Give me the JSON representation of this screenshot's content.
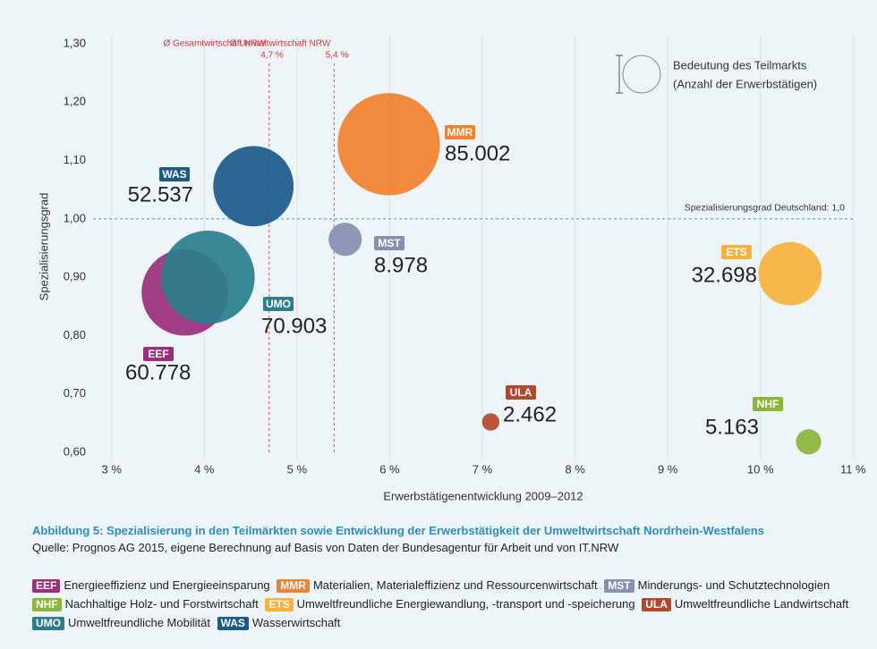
{
  "chart_data": {
    "type": "bubble",
    "x_label": "Erwerbstätigenentwicklung 2009–2012",
    "y_label": "Spezialisierungsgrad",
    "categories": [
      "EEF",
      "UMO",
      "WAS",
      "MMR",
      "MST",
      "ETS",
      "ULA",
      "NHF"
    ],
    "x": [
      3.79,
      4.04,
      4.53,
      5.99,
      5.52,
      10.32,
      7.09,
      10.52
    ],
    "values": [
      0.874,
      0.9,
      1.056,
      1.128,
      0.965,
      0.906,
      0.652,
      0.618
    ],
    "sizes": [
      60778,
      70903,
      52537,
      85002,
      8978,
      32698,
      2462,
      5163
    ],
    "size_labels": [
      "60.778",
      "70.903",
      "52.537",
      "85.002",
      "8.978",
      "32.698",
      "2.462",
      "5.163"
    ],
    "colors": [
      "#9c2f7d",
      "#2b7f8d",
      "#1d5a8c",
      "#f0812e",
      "#8790b0",
      "#f8b13d",
      "#b4482b",
      "#8bb43b"
    ],
    "xlim": [
      2.8,
      11.2
    ],
    "ylim": [
      0.6,
      1.3
    ],
    "xticks": [
      {
        "value": 3,
        "label": "3 %"
      },
      {
        "value": 4,
        "label": "4 %"
      },
      {
        "value": 5,
        "label": "5 %"
      },
      {
        "value": 6,
        "label": "6 %"
      },
      {
        "value": 7,
        "label": "7 %"
      },
      {
        "value": 8,
        "label": "8 %"
      },
      {
        "value": 9,
        "label": "9 %"
      },
      {
        "value": 10,
        "label": "10 %"
      },
      {
        "value": 11,
        "label": "11 %"
      }
    ],
    "yticks": [
      {
        "value": 0.6,
        "label": "0,60"
      },
      {
        "value": 0.7,
        "label": "0,70"
      },
      {
        "value": 0.8,
        "label": "0,80"
      },
      {
        "value": 0.9,
        "label": "0,90"
      },
      {
        "value": 1.0,
        "label": "1,00"
      },
      {
        "value": 1.1,
        "label": "1,10"
      },
      {
        "value": 1.2,
        "label": "1,20"
      },
      {
        "value": 1.3,
        "label": "1,30"
      }
    ],
    "grid": "x",
    "vlines": [
      {
        "name": "Ø Gesamtwirtschaft NRW",
        "value": 4.7,
        "label": "4,7 %"
      },
      {
        "name": "Ø Umweltwirtschaft NRW",
        "value": 5.4,
        "label": "5,4 %"
      }
    ],
    "hline": {
      "value": 1.0,
      "label": "Spezialisierungsgrad Deutschland: 1,0"
    },
    "size_legend": [
      "Bedeutung des Teilmarkts",
      "(Anzahl der Erwerbstätigen)"
    ]
  },
  "caption": "Abbildung 5: Spezialisierung in den Teilmärkten sowie Entwicklung der Erwerbstätigkeit der Umweltwirtschaft Nordrhein-Westfalens",
  "source": "Quelle: Prognos AG 2015, eigene Berechnung auf Basis von Daten der Bundesagentur für Arbeit und von IT.NRW",
  "legend_items": [
    {
      "code": "EEF",
      "label": "Energieeffizienz und Energieeinsparung"
    },
    {
      "code": "MMR",
      "label": "Materialien, Materialeffizienz und Ressourcenwirtschaft"
    },
    {
      "code": "MST",
      "label": "Minderungs- und Schutztechnologien"
    },
    {
      "code": "NHF",
      "label": "Nachhaltige Holz- und Forstwirtschaft"
    },
    {
      "code": "ETS",
      "label": "Umweltfreundliche Energiewandlung, -transport und -speicherung"
    },
    {
      "code": "ULA",
      "label": "Umweltfreundliche Landwirtschaft"
    },
    {
      "code": "UMO",
      "label": "Umweltfreundliche Mobilität"
    },
    {
      "code": "WAS",
      "label": "Wasserwirtschaft"
    }
  ]
}
